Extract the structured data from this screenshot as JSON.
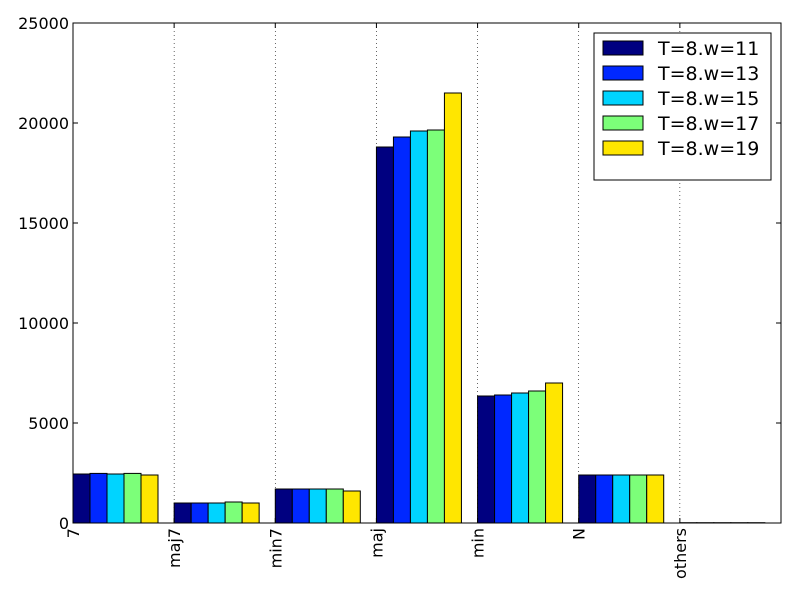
{
  "chart_data": {
    "type": "bar",
    "title": "",
    "xlabel": "",
    "ylabel": "",
    "categories": [
      "7",
      "maj7",
      "min7",
      "maj",
      "min",
      "N",
      "others"
    ],
    "ylim": [
      0,
      25000
    ],
    "yticks": [
      0,
      5000,
      10000,
      15000,
      20000,
      25000
    ],
    "grid": "vertical dotted",
    "legend_position": "top-right",
    "series": [
      {
        "name": "T=8.w=11",
        "color": "#000080",
        "values": [
          2450,
          1000,
          1700,
          18800,
          6350,
          2400,
          15
        ]
      },
      {
        "name": "T=8.w=13",
        "color": "#0028ff",
        "values": [
          2480,
          1000,
          1700,
          19300,
          6400,
          2400,
          15
        ]
      },
      {
        "name": "T=8.w=15",
        "color": "#00d4ff",
        "values": [
          2450,
          1000,
          1700,
          19600,
          6500,
          2400,
          15
        ]
      },
      {
        "name": "T=8.w=17",
        "color": "#7cff79",
        "values": [
          2480,
          1050,
          1700,
          19650,
          6600,
          2400,
          15
        ]
      },
      {
        "name": "T=8.w=19",
        "color": "#ffe600",
        "values": [
          2400,
          1000,
          1600,
          21500,
          7000,
          2400,
          15
        ]
      }
    ]
  }
}
